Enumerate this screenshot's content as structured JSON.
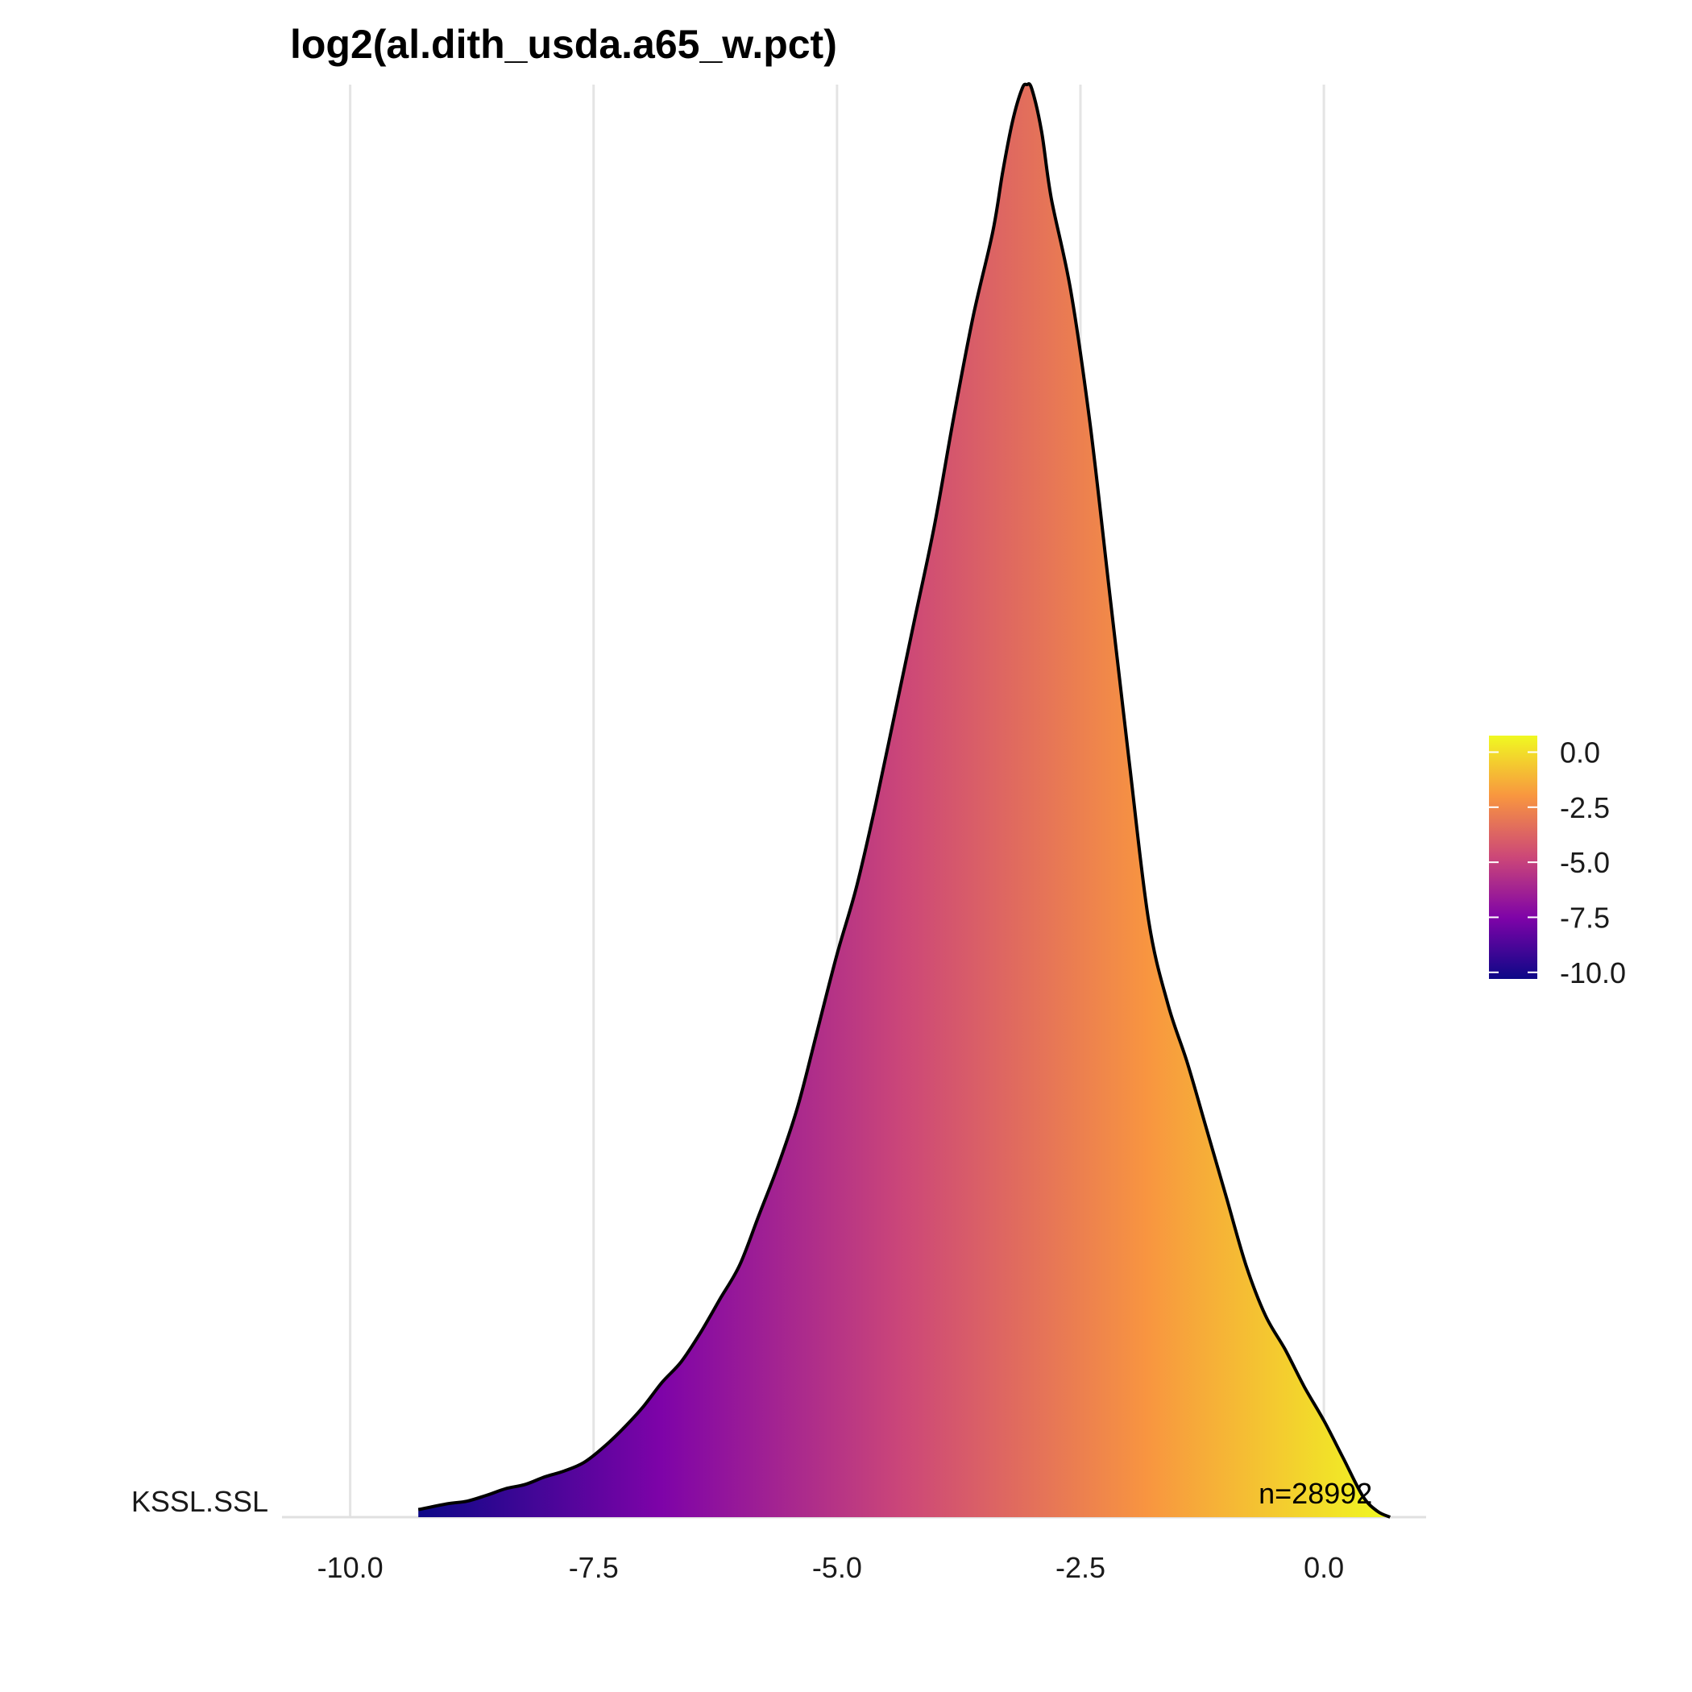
{
  "chart_data": {
    "type": "area",
    "title": "log2(al.dith_usda.a65_w.pct)",
    "xlabel": "",
    "ylabel": "",
    "xlim": [
      -10.7,
      1.05
    ],
    "x_ticks": [
      -10.0,
      -7.5,
      -5.0,
      -2.5,
      0.0
    ],
    "x_tick_labels": [
      "-10.0",
      "-7.5",
      "-5.0",
      "-2.5",
      "0.0"
    ],
    "grid": "vertical",
    "categories": [
      "KSSL.SSL"
    ],
    "series": [
      {
        "name": "KSSL.SSL",
        "annotation": "n=28992",
        "x": [
          -9.3,
          -9.0,
          -8.8,
          -8.6,
          -8.4,
          -8.2,
          -8.0,
          -7.8,
          -7.6,
          -7.4,
          -7.2,
          -7.0,
          -6.8,
          -6.6,
          -6.4,
          -6.2,
          -6.0,
          -5.8,
          -5.6,
          -5.4,
          -5.2,
          -5.0,
          -4.8,
          -4.6,
          -4.4,
          -4.2,
          -4.0,
          -3.8,
          -3.6,
          -3.4,
          -3.3,
          -3.2,
          -3.1,
          -3.05,
          -3.0,
          -2.9,
          -2.8,
          -2.6,
          -2.4,
          -2.2,
          -2.0,
          -1.8,
          -1.6,
          -1.4,
          -1.2,
          -1.0,
          -0.8,
          -0.6,
          -0.4,
          -0.2,
          0.0,
          0.2,
          0.4,
          0.55,
          0.68
        ],
        "y": [
          0.009,
          0.016,
          0.019,
          0.026,
          0.034,
          0.039,
          0.048,
          0.055,
          0.065,
          0.083,
          0.105,
          0.13,
          0.16,
          0.185,
          0.22,
          0.26,
          0.3,
          0.36,
          0.42,
          0.49,
          0.58,
          0.67,
          0.75,
          0.85,
          0.96,
          1.07,
          1.18,
          1.31,
          1.43,
          1.53,
          1.6,
          1.66,
          1.7,
          1.705,
          1.7,
          1.65,
          1.57,
          1.46,
          1.3,
          1.1,
          0.9,
          0.71,
          0.61,
          0.54,
          0.46,
          0.38,
          0.3,
          0.24,
          0.2,
          0.155,
          0.115,
          0.07,
          0.025,
          0.007,
          0.0
        ]
      }
    ],
    "fill": {
      "type": "gradient-by-x",
      "palette": "plasma",
      "stops": [
        "#0d0887",
        "#7e03a8",
        "#cc4778",
        "#f89540",
        "#f0f921"
      ]
    },
    "legend": {
      "position": "right",
      "ticks": [
        "0.0",
        "-2.5",
        "-5.0",
        "-7.5",
        "-10.0"
      ],
      "range": [
        -10.3,
        0.75
      ]
    }
  }
}
